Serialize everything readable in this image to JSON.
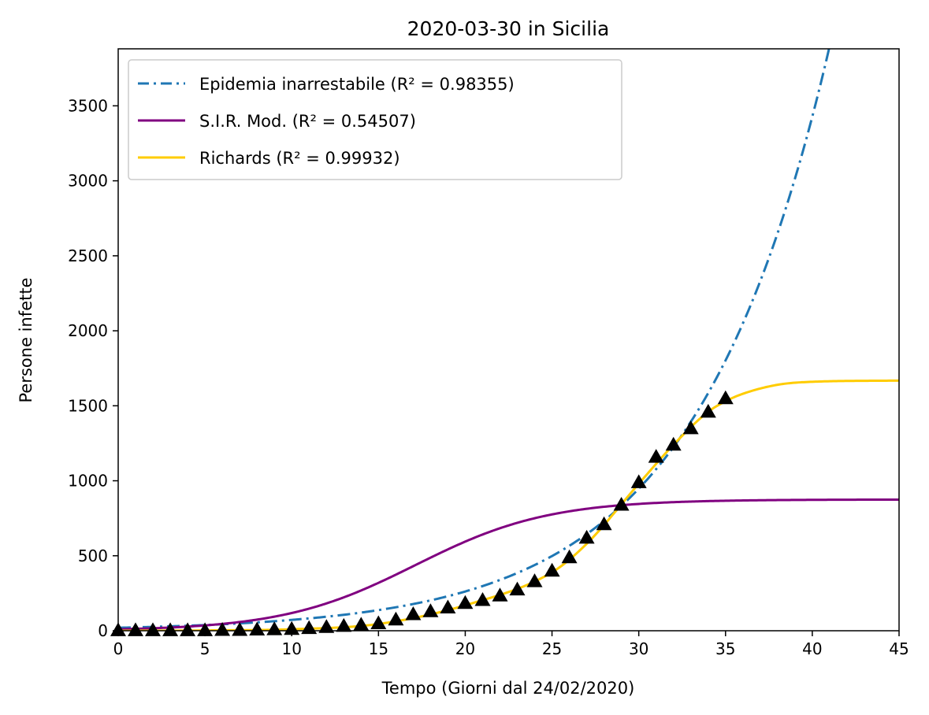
{
  "chart_data": {
    "type": "line",
    "title": "2020-03-30 in Sicilia",
    "xlabel": "Tempo (Giorni dal 24/02/2020)",
    "ylabel": "Persone infette",
    "xlim": [
      0,
      45
    ],
    "ylim": [
      0,
      3880
    ],
    "xticks": [
      0,
      5,
      10,
      15,
      20,
      25,
      30,
      35,
      40,
      45
    ],
    "yticks": [
      0,
      500,
      1000,
      1500,
      2000,
      2500,
      3000,
      3500
    ],
    "legend_position": "top-left",
    "grid": false,
    "series": [
      {
        "name": "Epidemia inarrestabile (R² = 0.98355)",
        "style": "dash-dot",
        "color": "#1f77b4",
        "model": "exponential",
        "x": [
          0,
          5,
          10,
          15,
          20,
          25,
          28,
          30,
          33,
          35,
          38,
          41
        ],
        "y": [
          20,
          40,
          65,
          105,
          210,
          400,
          660,
          900,
          1320,
          1660,
          2560,
          3880
        ]
      },
      {
        "name": "S.I.R. Mod. (R² = 0.54507)",
        "style": "solid",
        "color": "#800080",
        "model": "logistic",
        "x": [
          0,
          5,
          10,
          14,
          16,
          18,
          20,
          22,
          24,
          26,
          28,
          30,
          35,
          45
        ],
        "y": [
          10,
          30,
          90,
          220,
          330,
          500,
          680,
          800,
          850,
          868,
          873,
          875,
          875,
          875
        ]
      },
      {
        "name": "Richards (R² = 0.99932)",
        "style": "solid",
        "color": "#ffcc00",
        "model": "richards",
        "x": [
          0,
          5,
          10,
          15,
          20,
          25,
          27,
          30,
          32,
          34,
          35,
          36,
          38,
          40,
          45
        ],
        "y": [
          0,
          2,
          10,
          45,
          170,
          390,
          580,
          980,
          1240,
          1460,
          1530,
          1580,
          1640,
          1660,
          1668
        ]
      },
      {
        "name": "",
        "style": "marker",
        "marker": "triangle",
        "color": "#000000",
        "x": [
          0,
          1,
          2,
          3,
          4,
          5,
          6,
          7,
          8,
          9,
          10,
          11,
          12,
          13,
          14,
          15,
          16,
          17,
          18,
          19,
          20,
          21,
          22,
          23,
          24,
          25,
          26,
          27,
          28,
          29,
          30,
          31,
          32,
          33,
          34,
          35
        ],
        "y": [
          3,
          3,
          3,
          3,
          3,
          3,
          5,
          5,
          8,
          10,
          12,
          18,
          25,
          32,
          40,
          50,
          75,
          110,
          130,
          155,
          185,
          205,
          235,
          275,
          330,
          400,
          490,
          620,
          710,
          840,
          990,
          1160,
          1240,
          1350,
          1460,
          1550
        ]
      }
    ]
  }
}
